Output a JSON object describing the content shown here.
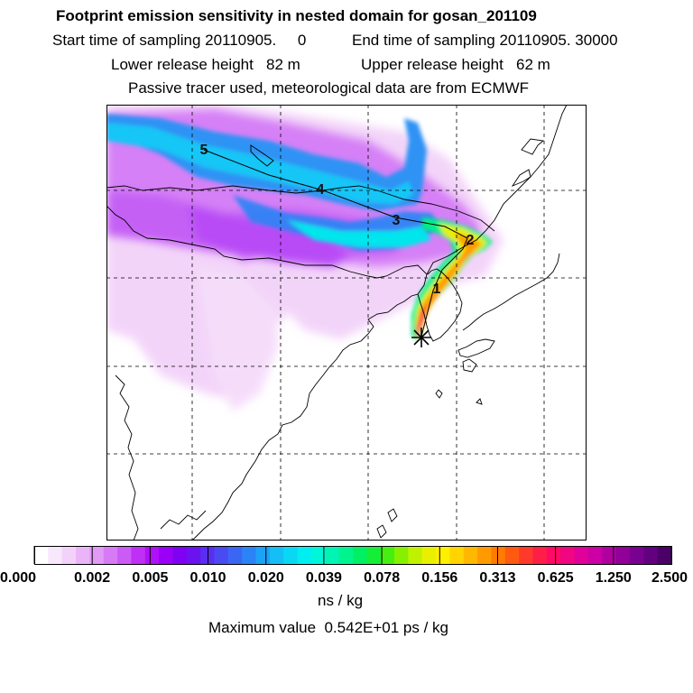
{
  "header": {
    "title": "Footprint emission sensitivity in nested domain for gosan_201109",
    "line2_start": "Start time of sampling 20110905.     0",
    "line2_end": "End time of sampling 20110905. 30000",
    "line3_lower": "Lower release height   82 m",
    "line3_upper": "Upper release height   62 m",
    "line4": "Passive tracer used, meteorological data are from ECMWF"
  },
  "map": {
    "trajectory_labels": [
      "1",
      "2",
      "3",
      "4",
      "5"
    ],
    "release_marker": "release-site-star"
  },
  "colorbar": {
    "tick_labels": [
      "0.000",
      "0.002",
      "0.005",
      "0.010",
      "0.020",
      "0.039",
      "0.078",
      "0.156",
      "0.313",
      "0.625",
      "1.250",
      "2.500"
    ],
    "unit": "ns / kg",
    "max_value_text": "Maximum value  0.542E+01 ps / kg",
    "colors": [
      "#ffffff",
      "#f8e8fb",
      "#f3d2f9",
      "#eab5f7",
      "#e19af6",
      "#d77af6",
      "#cc5af5",
      "#bf2ff6",
      "#b010f8",
      "#9a00f7",
      "#7f00f2",
      "#6a13f0",
      "#5a2ef0",
      "#4a4af2",
      "#3a66f4",
      "#2a84f5",
      "#1ca2f6",
      "#14bff6",
      "#0ad8f3",
      "#00eef0",
      "#00f6d8",
      "#00f5b4",
      "#00f48e",
      "#00f064",
      "#14ee38",
      "#48ee10",
      "#86f000",
      "#c0f200",
      "#e8f000",
      "#fff000",
      "#ffd400",
      "#ffb800",
      "#ff9a00",
      "#ff7c00",
      "#ff5a10",
      "#ff3a2a",
      "#ff1e46",
      "#ff0a66",
      "#f00682",
      "#e0009a",
      "#cc00a4",
      "#b000a0",
      "#92009a",
      "#7a0090",
      "#620080",
      "#4a0068"
    ]
  }
}
